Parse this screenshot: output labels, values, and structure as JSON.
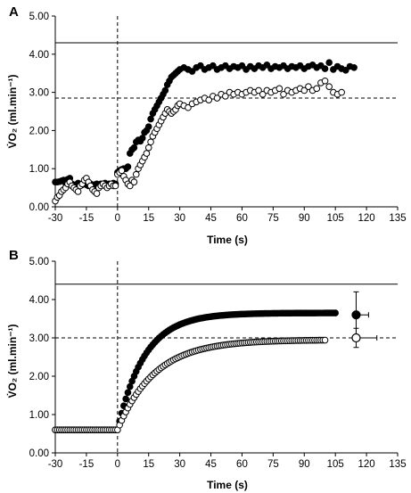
{
  "chart_data": [
    {
      "type": "scatter",
      "panel_label": "A",
      "xlabel": "Time (s)",
      "ylabel": "V̇O₂ (ml.min⁻¹)",
      "xlim": [
        -30,
        135
      ],
      "ylim": [
        0,
        5
      ],
      "x_ticks": [
        "-30",
        "-15",
        "0",
        "15",
        "30",
        "45",
        "60",
        "75",
        "90",
        "105",
        "120",
        "135"
      ],
      "y_ticks": [
        "0.00",
        "1.00",
        "2.00",
        "3.00",
        "4.00",
        "5.00"
      ],
      "grid": false,
      "reference_lines": [
        {
          "style": "solid",
          "y": 4.3
        },
        {
          "style": "dashed",
          "y": 2.85
        },
        {
          "style": "dashed",
          "x": 0
        }
      ],
      "series": [
        {
          "marker": "filled-circle",
          "color": "#000000",
          "points": [
            [
              -30,
              0.65
            ],
            [
              -29,
              0.65
            ],
            [
              -28,
              0.66
            ],
            [
              -27,
              0.68
            ],
            [
              -26,
              0.7
            ],
            [
              -25,
              0.62
            ],
            [
              -24,
              0.72
            ],
            [
              -23,
              0.75
            ],
            [
              -22,
              0.6
            ],
            [
              -21,
              0.55
            ],
            [
              -20,
              0.58
            ],
            [
              -19,
              0.62
            ],
            [
              -18,
              0.55
            ],
            [
              -17,
              0.58
            ],
            [
              -16,
              0.62
            ],
            [
              -15,
              0.58
            ],
            [
              -14,
              0.55
            ],
            [
              -13,
              0.6
            ],
            [
              -12,
              0.55
            ],
            [
              -11,
              0.58
            ],
            [
              -10,
              0.6
            ],
            [
              -9,
              0.55
            ],
            [
              -8,
              0.6
            ],
            [
              -7,
              0.58
            ],
            [
              -6,
              0.62
            ],
            [
              -5,
              0.55
            ],
            [
              -4,
              0.6
            ],
            [
              -3,
              0.58
            ],
            [
              -2,
              0.62
            ],
            [
              -1,
              0.6
            ],
            [
              0,
              0.9
            ],
            [
              1,
              0.95
            ],
            [
              2,
              0.98
            ],
            [
              3,
              1.0
            ],
            [
              4,
              1.0
            ],
            [
              5,
              1.05
            ],
            [
              6,
              1.4
            ],
            [
              7,
              1.5
            ],
            [
              8,
              1.55
            ],
            [
              9,
              1.7
            ],
            [
              10,
              1.75
            ],
            [
              11,
              1.72
            ],
            [
              12,
              1.8
            ],
            [
              13,
              1.95
            ],
            [
              14,
              2.0
            ],
            [
              15,
              2.1
            ],
            [
              16,
              2.3
            ],
            [
              17,
              2.45
            ],
            [
              18,
              2.55
            ],
            [
              19,
              2.65
            ],
            [
              20,
              2.75
            ],
            [
              21,
              2.85
            ],
            [
              22,
              2.95
            ],
            [
              23,
              3.05
            ],
            [
              24,
              3.2
            ],
            [
              25,
              3.3
            ],
            [
              26,
              3.4
            ],
            [
              27,
              3.45
            ],
            [
              28,
              3.5
            ],
            [
              29,
              3.55
            ],
            [
              30,
              3.6
            ],
            [
              32,
              3.65
            ],
            [
              34,
              3.6
            ],
            [
              36,
              3.55
            ],
            [
              38,
              3.65
            ],
            [
              40,
              3.7
            ],
            [
              42,
              3.6
            ],
            [
              44,
              3.65
            ],
            [
              46,
              3.7
            ],
            [
              48,
              3.6
            ],
            [
              50,
              3.65
            ],
            [
              52,
              3.7
            ],
            [
              54,
              3.62
            ],
            [
              56,
              3.68
            ],
            [
              58,
              3.65
            ],
            [
              60,
              3.7
            ],
            [
              62,
              3.6
            ],
            [
              64,
              3.68
            ],
            [
              66,
              3.62
            ],
            [
              68,
              3.7
            ],
            [
              70,
              3.65
            ],
            [
              72,
              3.72
            ],
            [
              74,
              3.62
            ],
            [
              76,
              3.68
            ],
            [
              78,
              3.65
            ],
            [
              80,
              3.7
            ],
            [
              82,
              3.62
            ],
            [
              84,
              3.68
            ],
            [
              86,
              3.65
            ],
            [
              88,
              3.7
            ],
            [
              90,
              3.62
            ],
            [
              92,
              3.68
            ],
            [
              94,
              3.72
            ],
            [
              96,
              3.65
            ],
            [
              98,
              3.7
            ],
            [
              100,
              3.62
            ],
            [
              102,
              3.78
            ],
            [
              104,
              3.6
            ],
            [
              106,
              3.68
            ],
            [
              108,
              3.62
            ],
            [
              110,
              3.58
            ],
            [
              112,
              3.68
            ],
            [
              114,
              3.65
            ]
          ]
        },
        {
          "marker": "open-circle",
          "color": "#000000",
          "points": [
            [
              -30,
              0.15
            ],
            [
              -29,
              0.25
            ],
            [
              -28,
              0.3
            ],
            [
              -27,
              0.4
            ],
            [
              -26,
              0.45
            ],
            [
              -25,
              0.5
            ],
            [
              -24,
              0.6
            ],
            [
              -23,
              0.65
            ],
            [
              -22,
              0.55
            ],
            [
              -21,
              0.5
            ],
            [
              -20,
              0.45
            ],
            [
              -19,
              0.4
            ],
            [
              -18,
              0.55
            ],
            [
              -17,
              0.6
            ],
            [
              -16,
              0.7
            ],
            [
              -15,
              0.75
            ],
            [
              -14,
              0.65
            ],
            [
              -13,
              0.55
            ],
            [
              -12,
              0.45
            ],
            [
              -11,
              0.4
            ],
            [
              -10,
              0.35
            ],
            [
              -9,
              0.5
            ],
            [
              -8,
              0.55
            ],
            [
              -7,
              0.6
            ],
            [
              -6,
              0.55
            ],
            [
              -5,
              0.5
            ],
            [
              -4,
              0.55
            ],
            [
              -3,
              0.6
            ],
            [
              -2,
              0.55
            ],
            [
              -1,
              0.55
            ],
            [
              0,
              0.85
            ],
            [
              1,
              0.9
            ],
            [
              2,
              0.95
            ],
            [
              3,
              0.8
            ],
            [
              4,
              0.7
            ],
            [
              5,
              0.6
            ],
            [
              6,
              0.55
            ],
            [
              7,
              0.7
            ],
            [
              8,
              0.65
            ],
            [
              9,
              0.85
            ],
            [
              10,
              1.0
            ],
            [
              11,
              1.1
            ],
            [
              12,
              1.2
            ],
            [
              13,
              1.3
            ],
            [
              14,
              1.4
            ],
            [
              15,
              1.55
            ],
            [
              16,
              1.7
            ],
            [
              17,
              1.85
            ],
            [
              18,
              1.95
            ],
            [
              19,
              2.05
            ],
            [
              20,
              2.15
            ],
            [
              21,
              2.25
            ],
            [
              22,
              2.35
            ],
            [
              23,
              2.45
            ],
            [
              24,
              2.55
            ],
            [
              25,
              2.5
            ],
            [
              26,
              2.45
            ],
            [
              27,
              2.5
            ],
            [
              28,
              2.55
            ],
            [
              29,
              2.65
            ],
            [
              30,
              2.7
            ],
            [
              32,
              2.65
            ],
            [
              34,
              2.6
            ],
            [
              36,
              2.7
            ],
            [
              38,
              2.75
            ],
            [
              40,
              2.8
            ],
            [
              42,
              2.85
            ],
            [
              44,
              2.8
            ],
            [
              46,
              2.9
            ],
            [
              48,
              2.85
            ],
            [
              50,
              2.95
            ],
            [
              52,
              2.9
            ],
            [
              54,
              3.0
            ],
            [
              56,
              2.95
            ],
            [
              58,
              3.0
            ],
            [
              60,
              2.95
            ],
            [
              62,
              3.0
            ],
            [
              64,
              3.05
            ],
            [
              66,
              3.0
            ],
            [
              68,
              3.05
            ],
            [
              70,
              2.95
            ],
            [
              72,
              3.05
            ],
            [
              74,
              3.0
            ],
            [
              76,
              3.05
            ],
            [
              78,
              3.1
            ],
            [
              80,
              2.95
            ],
            [
              82,
              3.05
            ],
            [
              84,
              3.0
            ],
            [
              86,
              3.05
            ],
            [
              88,
              3.1
            ],
            [
              90,
              3.05
            ],
            [
              92,
              3.15
            ],
            [
              94,
              3.05
            ],
            [
              96,
              3.1
            ],
            [
              98,
              3.25
            ],
            [
              100,
              3.3
            ],
            [
              102,
              3.15
            ],
            [
              104,
              3.0
            ],
            [
              106,
              2.95
            ],
            [
              108,
              3.0
            ]
          ]
        }
      ]
    },
    {
      "type": "scatter",
      "panel_label": "B",
      "xlabel": "Time (s)",
      "ylabel": "V̇O₂ (ml.min⁻¹)",
      "xlim": [
        -30,
        135
      ],
      "ylim": [
        0,
        5
      ],
      "x_ticks": [
        "-30",
        "-15",
        "0",
        "15",
        "30",
        "45",
        "60",
        "75",
        "90",
        "105",
        "120",
        "135"
      ],
      "y_ticks": [
        "0.00",
        "1.00",
        "2.00",
        "3.00",
        "4.00",
        "5.00"
      ],
      "grid": false,
      "reference_lines": [
        {
          "style": "solid",
          "y": 4.4
        },
        {
          "style": "dashed",
          "y": 3.0
        },
        {
          "style": "dashed",
          "x": 0
        }
      ],
      "summary_points": [
        {
          "marker": "filled-circle",
          "x": 115,
          "y": 3.6,
          "y_error": 0.6,
          "x_error": 6
        },
        {
          "marker": "open-circle",
          "x": 115,
          "y": 3.0,
          "y_error": 0.25,
          "x_error": 10
        }
      ],
      "series": [
        {
          "marker": "filled-circle",
          "color": "#000000",
          "model": {
            "baseline": 0.6,
            "amplitude": 3.05,
            "delay": 0,
            "tau": 13,
            "x_start": -30,
            "x_end": 105,
            "step": 1
          }
        },
        {
          "marker": "open-circle",
          "color": "#000000",
          "model": {
            "baseline": 0.6,
            "amplitude": 2.35,
            "delay": 0,
            "tau": 18,
            "x_start": -30,
            "x_end": 100,
            "step": 1
          }
        }
      ]
    }
  ]
}
